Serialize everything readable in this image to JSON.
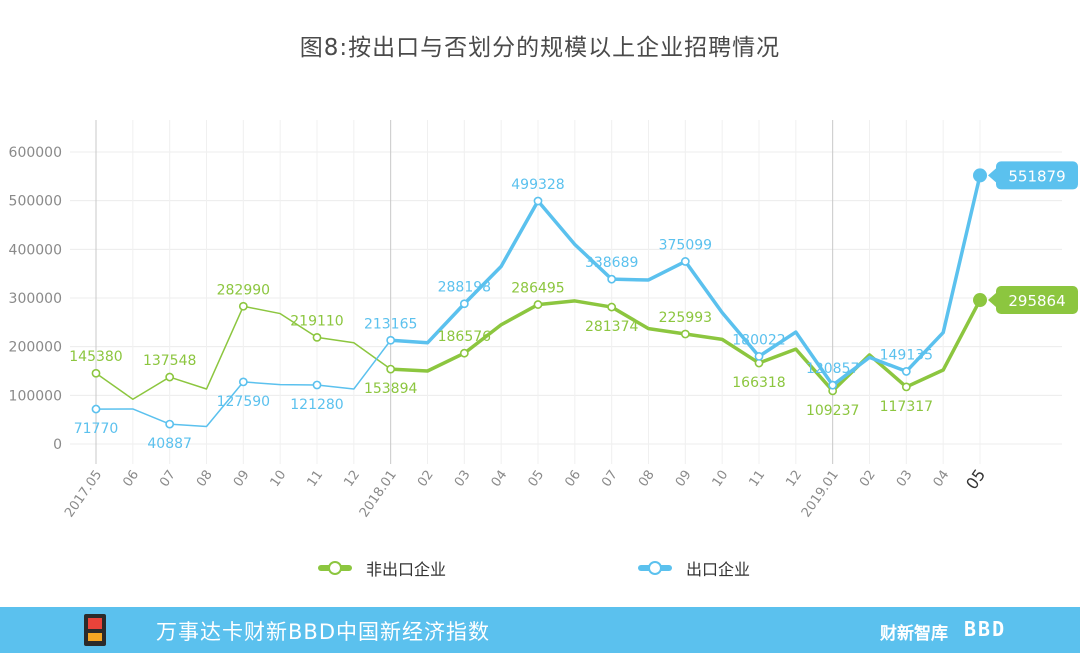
{
  "title": "图8:按出口与否划分的规模以上企业招聘情况",
  "chart_data": {
    "type": "line",
    "x": [
      "2017.05",
      "06",
      "07",
      "08",
      "09",
      "10",
      "11",
      "12",
      "2018.01",
      "02",
      "03",
      "04",
      "05",
      "06",
      "07",
      "08",
      "09",
      "10",
      "11",
      "12",
      "2019.01",
      "02",
      "03",
      "04",
      "05"
    ],
    "ylim": [
      0,
      600000
    ],
    "yticks": [
      0,
      100000,
      200000,
      300000,
      400000,
      500000,
      600000
    ],
    "grid": true,
    "legend_position": "bottom",
    "series": [
      {
        "name": "非出口企业",
        "color": "#8cc63f",
        "values": [
          145380,
          92000,
          137548,
          113000,
          282990,
          268000,
          219110,
          208000,
          153894,
          150000,
          186576,
          245000,
          286495,
          294000,
          281374,
          237000,
          225993,
          215000,
          166318,
          195000,
          109237,
          183000,
          117317,
          152000,
          295864
        ],
        "labels": [
          {
            "i": 0,
            "text": "145380",
            "pos": "above"
          },
          {
            "i": 2,
            "text": "137548",
            "pos": "above"
          },
          {
            "i": 4,
            "text": "282990",
            "pos": "above"
          },
          {
            "i": 6,
            "text": "219110",
            "pos": "above"
          },
          {
            "i": 8,
            "text": "153894",
            "pos": "below"
          },
          {
            "i": 10,
            "text": "186576",
            "pos": "above"
          },
          {
            "i": 12,
            "text": "286495",
            "pos": "above"
          },
          {
            "i": 14,
            "text": "281374",
            "pos": "below"
          },
          {
            "i": 16,
            "text": "225993",
            "pos": "above"
          },
          {
            "i": 18,
            "text": "166318",
            "pos": "below"
          },
          {
            "i": 20,
            "text": "109237",
            "pos": "below"
          },
          {
            "i": 22,
            "text": "117317",
            "pos": "below"
          }
        ],
        "end_label": "295864"
      },
      {
        "name": "出口企业",
        "color": "#5bc1ee",
        "values": [
          71770,
          72000,
          40887,
          36000,
          127590,
          122000,
          121280,
          113000,
          213165,
          208000,
          288198,
          365000,
          499328,
          410000,
          338689,
          337000,
          375099,
          270000,
          180022,
          230000,
          120857,
          178000,
          149135,
          229000,
          551879
        ],
        "labels": [
          {
            "i": 0,
            "text": "71770",
            "pos": "below"
          },
          {
            "i": 2,
            "text": "40887",
            "pos": "below"
          },
          {
            "i": 4,
            "text": "127590",
            "pos": "below"
          },
          {
            "i": 6,
            "text": "121280",
            "pos": "below"
          },
          {
            "i": 8,
            "text": "213165",
            "pos": "above"
          },
          {
            "i": 10,
            "text": "288198",
            "pos": "above"
          },
          {
            "i": 12,
            "text": "499328",
            "pos": "above"
          },
          {
            "i": 14,
            "text": "338689",
            "pos": "above"
          },
          {
            "i": 16,
            "text": "375099",
            "pos": "above"
          },
          {
            "i": 18,
            "text": "180022",
            "pos": "above"
          },
          {
            "i": 20,
            "text": "120857",
            "pos": "above"
          },
          {
            "i": 22,
            "text": "149135",
            "pos": "above"
          }
        ],
        "end_label": "551879"
      }
    ]
  },
  "legend": [
    {
      "label": "非出口企业",
      "color": "#8cc63f"
    },
    {
      "label": "出口企业",
      "color": "#5bc1ee"
    }
  ],
  "footer": {
    "index_name": "万事达卡财新BBD中国新经济指数",
    "brand_1": "财新智库",
    "brand_2": "BBD"
  }
}
